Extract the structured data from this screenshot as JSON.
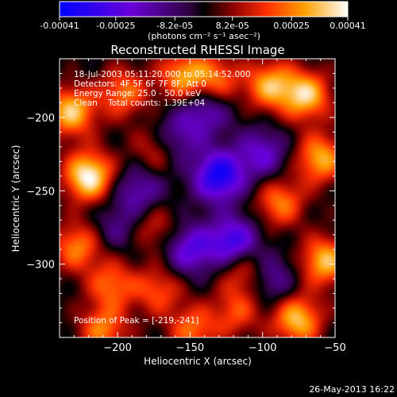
{
  "colorbar": {
    "tick_labels": [
      "-0.00041",
      "-0.00025",
      "-8.2e-05",
      "8.2e-05",
      "0.00025",
      "0.00041"
    ],
    "tick_values": [
      -0.00041,
      -0.00025,
      -8.2e-05,
      8.2e-05,
      0.00025,
      0.00041
    ],
    "range": [
      -0.00041,
      0.00041
    ],
    "units_label": "(photons cm⁻² s⁻¹ asec⁻²)"
  },
  "chart_data": {
    "type": "heatmap",
    "title": "Reconstructed RHESSI Image",
    "xlabel": "Heliocentric X (arcsec)",
    "ylabel": "Heliocentric Y (arcsec)",
    "xlim": [
      -240,
      -50
    ],
    "ylim": [
      -350,
      -160
    ],
    "xticks": [
      -200,
      -150,
      -100,
      -50
    ],
    "xtick_labels": [
      "−200",
      "−150",
      "−100",
      "−50"
    ],
    "yticks": [
      -200,
      -250,
      -300
    ],
    "ytick_labels": [
      "−200",
      "−250",
      "−300"
    ],
    "peak_position": [
      -219,
      -241
    ],
    "blobs": [
      {
        "x": -220,
        "y": -240,
        "v": 1.0
      },
      {
        "x": -232,
        "y": -196,
        "v": 0.82
      },
      {
        "x": -228,
        "y": -288,
        "v": 0.62
      },
      {
        "x": -204,
        "y": -314,
        "v": 0.55
      },
      {
        "x": -196,
        "y": -183,
        "v": 0.58
      },
      {
        "x": -173,
        "y": -222,
        "v": 0.42
      },
      {
        "x": -155,
        "y": -172,
        "v": 0.68
      },
      {
        "x": -132,
        "y": -174,
        "v": 0.55
      },
      {
        "x": -95,
        "y": -178,
        "v": 0.72
      },
      {
        "x": -70,
        "y": -185,
        "v": 0.82
      },
      {
        "x": -60,
        "y": -228,
        "v": 0.74
      },
      {
        "x": -88,
        "y": -258,
        "v": 0.6
      },
      {
        "x": -57,
        "y": -298,
        "v": 0.78
      },
      {
        "x": -112,
        "y": -305,
        "v": 0.52
      },
      {
        "x": -76,
        "y": -338,
        "v": 0.8
      },
      {
        "x": -172,
        "y": -318,
        "v": 0.48
      },
      {
        "x": -148,
        "y": -345,
        "v": 0.55
      },
      {
        "x": -118,
        "y": -333,
        "v": 0.45
      },
      {
        "x": -175,
        "y": -275,
        "v": 0.38
      },
      {
        "x": -210,
        "y": -345,
        "v": 0.6
      },
      {
        "x": -160,
        "y": -215,
        "v": -0.45
      },
      {
        "x": -130,
        "y": -240,
        "v": -0.9
      },
      {
        "x": -120,
        "y": -285,
        "v": -0.75
      },
      {
        "x": -150,
        "y": -290,
        "v": -0.6
      },
      {
        "x": -100,
        "y": -225,
        "v": -0.5
      },
      {
        "x": -185,
        "y": -250,
        "v": -0.45
      },
      {
        "x": -140,
        "y": -195,
        "v": -0.5
      },
      {
        "x": -95,
        "y": -310,
        "v": -0.45
      },
      {
        "x": -200,
        "y": -275,
        "v": -0.3
      }
    ]
  },
  "annotations": {
    "time_range": "18-Jul-2003 05:11:20.000 to 05:14:52.000",
    "detectors": "Detectors: 4F 5F 6F 7F 8F, Att 0",
    "energy_range": "Energy Range: 25.0 - 50.0 keV",
    "clean_counts": "Clean    Total counts: 1.39E+04",
    "peak_label": "Position of Peak = [-219,-241]"
  },
  "footer": {
    "timestamp": "26-May-2013 16:22"
  }
}
